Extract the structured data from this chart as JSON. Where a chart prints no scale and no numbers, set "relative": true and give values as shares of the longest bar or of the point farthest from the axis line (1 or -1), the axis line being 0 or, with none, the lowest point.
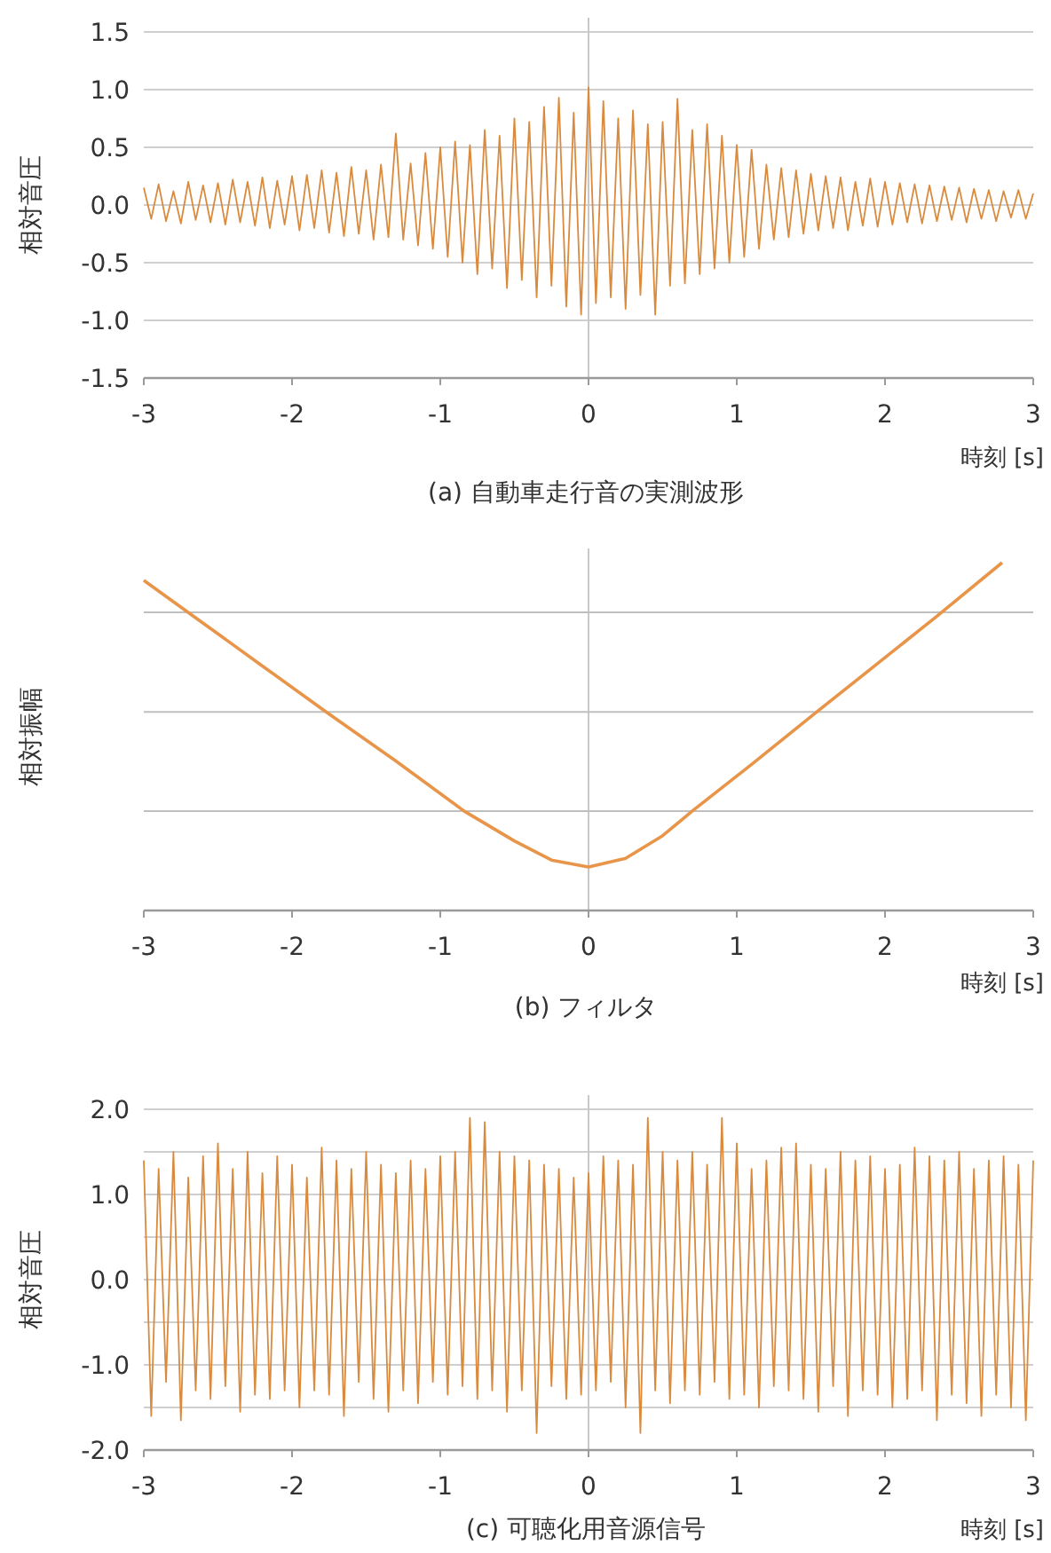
{
  "chart_data": [
    {
      "type": "line",
      "title": "(a) 自動車走行音の実測波形",
      "xlabel": "時刻 [s]",
      "ylabel": "相対音圧",
      "xlim": [
        -3,
        3
      ],
      "xticks": [
        -3,
        -2,
        -1,
        0,
        1,
        2,
        3
      ],
      "ylim": [
        -1.5,
        1.5
      ],
      "yticks": [
        -1.5,
        {
          "value": -1,
          "label": "-1.0"
        },
        -0.5,
        {
          "value": 0,
          "label": "0.0"
        },
        0.5,
        {
          "value": 1,
          "label": "1.0"
        },
        1.5
      ],
      "grid": "y",
      "line_style": "solid",
      "ref_lines": [
        {
          "axis": "x",
          "value": 0,
          "color": "#c8c8c8"
        }
      ],
      "x": [
        -3,
        -2.95,
        -2.9,
        -2.85,
        -2.8,
        -2.75,
        -2.7,
        -2.65,
        -2.6,
        -2.55,
        -2.5,
        -2.45,
        -2.4,
        -2.35,
        -2.3,
        -2.25,
        -2.2,
        -2.15,
        -2.1,
        -2.05,
        -2,
        -1.95,
        -1.9,
        -1.85,
        -1.8,
        -1.75,
        -1.7,
        -1.65,
        -1.6,
        -1.55,
        -1.5,
        -1.45,
        -1.4,
        -1.35,
        -1.3,
        -1.25,
        -1.2,
        -1.15,
        -1.1,
        -1.05,
        -1,
        -0.95,
        -0.9,
        -0.85,
        -0.8,
        -0.75,
        -0.7,
        -0.65,
        -0.6,
        -0.55,
        -0.5,
        -0.45,
        -0.4,
        -0.35,
        -0.3,
        -0.25,
        -0.2,
        -0.15,
        -0.1,
        -0.05,
        0,
        0.05,
        0.1,
        0.15,
        0.2,
        0.25,
        0.3,
        0.35,
        0.4,
        0.45,
        0.5,
        0.55,
        0.6,
        0.65,
        0.7,
        0.75,
        0.8,
        0.85,
        0.9,
        0.95,
        1,
        1.05,
        1.1,
        1.15,
        1.2,
        1.25,
        1.3,
        1.35,
        1.4,
        1.45,
        1.5,
        1.55,
        1.6,
        1.65,
        1.7,
        1.75,
        1.8,
        1.85,
        1.9,
        1.95,
        2,
        2.05,
        2.1,
        2.15,
        2.2,
        2.25,
        2.3,
        2.35,
        2.4,
        2.45,
        2.5,
        2.55,
        2.6,
        2.65,
        2.7,
        2.75,
        2.8,
        2.85,
        2.9,
        2.95,
        3
      ],
      "series": [
        {
          "color": "#d98a3d",
          "values": [
            0.15,
            -0.12,
            0.18,
            -0.14,
            0.12,
            -0.16,
            0.2,
            -0.13,
            0.17,
            -0.15,
            0.19,
            -0.17,
            0.22,
            -0.15,
            0.2,
            -0.18,
            0.24,
            -0.2,
            0.21,
            -0.17,
            0.25,
            -0.22,
            0.26,
            -0.2,
            0.3,
            -0.24,
            0.28,
            -0.27,
            0.33,
            -0.25,
            0.3,
            -0.3,
            0.35,
            -0.28,
            0.62,
            -0.3,
            0.36,
            -0.35,
            0.45,
            -0.38,
            0.5,
            -0.45,
            0.55,
            -0.5,
            0.52,
            -0.6,
            0.65,
            -0.55,
            0.6,
            -0.72,
            0.75,
            -0.65,
            0.72,
            -0.8,
            0.85,
            -0.7,
            0.93,
            -0.88,
            0.8,
            -0.95,
            1.02,
            -0.85,
            0.9,
            -0.8,
            0.75,
            -0.9,
            0.82,
            -0.78,
            0.7,
            -0.95,
            0.72,
            -0.7,
            0.92,
            -0.68,
            0.65,
            -0.6,
            0.7,
            -0.55,
            0.6,
            -0.5,
            0.52,
            -0.45,
            0.48,
            -0.38,
            0.35,
            -0.3,
            0.32,
            -0.28,
            0.3,
            -0.25,
            0.27,
            -0.22,
            0.25,
            -0.2,
            0.24,
            -0.22,
            0.2,
            -0.18,
            0.23,
            -0.19,
            0.2,
            -0.17,
            0.19,
            -0.15,
            0.18,
            -0.16,
            0.17,
            -0.14,
            0.16,
            -0.13,
            0.15,
            -0.15,
            0.14,
            -0.12,
            0.13,
            -0.14,
            0.12,
            -0.11,
            0.13,
            -0.12,
            0.1
          ]
        }
      ]
    },
    {
      "type": "line",
      "title": "(b) フィルタ",
      "xlabel": "時刻 [s]",
      "ylabel": "相対振幅",
      "relative": true,
      "xlim": [
        -3,
        3
      ],
      "xticks": [
        -3,
        -2,
        -1,
        0,
        1,
        2,
        3
      ],
      "line_style": "solid",
      "ref_lines": [
        {
          "axis": "x",
          "value": 0,
          "color": "#c8c8c8"
        },
        {
          "axis": "y",
          "value": 0.286,
          "color": "#bfbfbf"
        },
        {
          "axis": "y",
          "value": 0.571,
          "color": "#bfbfbf"
        },
        {
          "axis": "y",
          "value": 0.857,
          "color": "#bfbfbf"
        }
      ],
      "series": [
        {
          "color": "#e8954a",
          "x": [
            -3,
            -2.6,
            -2.2,
            -1.77,
            -1.3,
            -0.84,
            -0.5,
            -0.25,
            0,
            0.25,
            0.5,
            0.7,
            1.1,
            1.54,
            1.95,
            2.35,
            2.79
          ],
          "values": [
            0.949,
            0.826,
            0.703,
            0.571,
            0.43,
            0.286,
            0.2,
            0.145,
            0.125,
            0.15,
            0.215,
            0.286,
            0.42,
            0.571,
            0.71,
            0.846,
            1.0
          ]
        }
      ]
    },
    {
      "type": "line",
      "title": "(c) 可聴化用音源信号",
      "xlabel": "時刻 [s]",
      "ylabel": "相対音圧",
      "xlim": [
        -3,
        3
      ],
      "xticks": [
        -3,
        -2,
        -1,
        0,
        1,
        2,
        3
      ],
      "ylim": [
        -2,
        2
      ],
      "yticks": [
        {
          "value": -2,
          "label": "-2.0"
        },
        {
          "value": -1.5,
          "label": null
        },
        {
          "value": -1,
          "label": "-1.0"
        },
        {
          "value": -0.5,
          "label": null
        },
        {
          "value": 0,
          "label": "0.0"
        },
        {
          "value": 0.5,
          "label": null
        },
        {
          "value": 1,
          "label": "1.0"
        },
        {
          "value": 1.5,
          "label": null
        },
        {
          "value": 2,
          "label": "2.0"
        }
      ],
      "grid": "y",
      "line_style": "solid",
      "ref_lines": [
        {
          "axis": "x",
          "value": 0,
          "color": "#c8c8c8"
        }
      ],
      "x": [
        -3,
        -2.95,
        -2.9,
        -2.85,
        -2.8,
        -2.75,
        -2.7,
        -2.65,
        -2.6,
        -2.55,
        -2.5,
        -2.45,
        -2.4,
        -2.35,
        -2.3,
        -2.25,
        -2.2,
        -2.15,
        -2.1,
        -2.05,
        -2,
        -1.95,
        -1.9,
        -1.85,
        -1.8,
        -1.75,
        -1.7,
        -1.65,
        -1.6,
        -1.55,
        -1.5,
        -1.45,
        -1.4,
        -1.35,
        -1.3,
        -1.25,
        -1.2,
        -1.15,
        -1.1,
        -1.05,
        -1,
        -0.95,
        -0.9,
        -0.85,
        -0.8,
        -0.75,
        -0.7,
        -0.65,
        -0.6,
        -0.55,
        -0.5,
        -0.45,
        -0.4,
        -0.35,
        -0.3,
        -0.25,
        -0.2,
        -0.15,
        -0.1,
        -0.05,
        0,
        0.05,
        0.1,
        0.15,
        0.2,
        0.25,
        0.3,
        0.35,
        0.4,
        0.45,
        0.5,
        0.55,
        0.6,
        0.65,
        0.7,
        0.75,
        0.8,
        0.85,
        0.9,
        0.95,
        1,
        1.05,
        1.1,
        1.15,
        1.2,
        1.25,
        1.3,
        1.35,
        1.4,
        1.45,
        1.5,
        1.55,
        1.6,
        1.65,
        1.7,
        1.75,
        1.8,
        1.85,
        1.9,
        1.95,
        2,
        2.05,
        2.1,
        2.15,
        2.2,
        2.25,
        2.3,
        2.35,
        2.4,
        2.45,
        2.5,
        2.55,
        2.6,
        2.65,
        2.7,
        2.75,
        2.8,
        2.85,
        2.9,
        2.95,
        3
      ],
      "series": [
        {
          "color": "#d98a3d",
          "values": [
            1.4,
            -1.6,
            1.3,
            -1.2,
            1.5,
            -1.65,
            1.2,
            -1.3,
            1.45,
            -1.4,
            1.6,
            -1.25,
            1.3,
            -1.55,
            1.5,
            -1.35,
            1.25,
            -1.4,
            1.45,
            -1.3,
            1.35,
            -1.5,
            1.2,
            -1.3,
            1.55,
            -1.35,
            1.4,
            -1.6,
            1.3,
            -1.2,
            1.5,
            -1.4,
            1.35,
            -1.55,
            1.25,
            -1.3,
            1.4,
            -1.45,
            1.3,
            -1.2,
            1.45,
            -1.35,
            1.5,
            -1.25,
            1.9,
            -1.4,
            1.85,
            -1.3,
            1.5,
            -1.55,
            1.45,
            -1.3,
            1.4,
            -1.8,
            1.35,
            -1.25,
            1.3,
            -1.4,
            1.2,
            -1.35,
            1.25,
            -1.3,
            1.45,
            -1.2,
            1.4,
            -1.5,
            1.35,
            -1.8,
            1.9,
            -1.3,
            1.5,
            -1.45,
            1.4,
            -1.3,
            1.5,
            -1.35,
            1.35,
            -1.2,
            1.9,
            -1.4,
            1.6,
            -1.35,
            1.3,
            -1.5,
            1.4,
            -1.25,
            1.55,
            -1.3,
            1.6,
            -1.4,
            1.35,
            -1.55,
            1.3,
            -1.25,
            1.5,
            -1.6,
            1.4,
            -1.3,
            1.45,
            -1.35,
            1.3,
            -1.5,
            1.35,
            -1.4,
            1.55,
            -1.3,
            1.45,
            -1.65,
            1.4,
            -1.35,
            1.5,
            -1.45,
            1.3,
            -1.6,
            1.4,
            -1.35,
            1.45,
            -1.5,
            1.35,
            -1.65,
            1.4
          ]
        }
      ]
    }
  ]
}
